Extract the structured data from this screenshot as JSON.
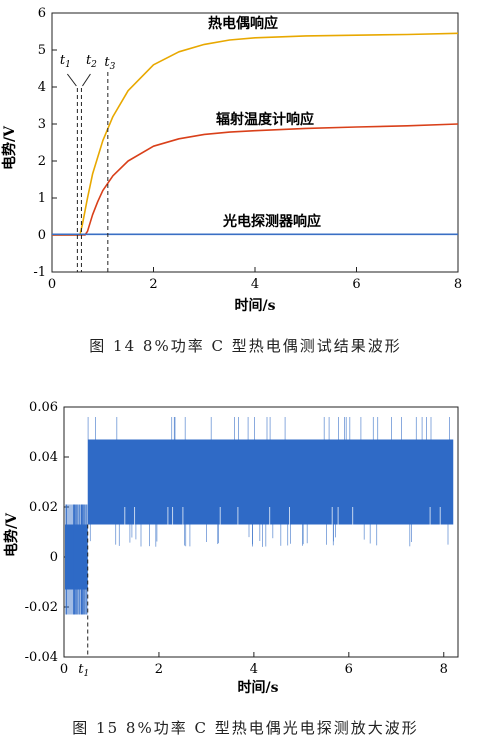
{
  "figures": [
    {
      "caption": "图 14   8%功率 C 型热电偶测试结果波形",
      "chart_data": {
        "type": "line",
        "xlabel": "时间/s",
        "ylabel": "电势/V",
        "xlim": [
          0,
          8
        ],
        "ylim": [
          -1,
          6
        ],
        "xticks": [
          "0",
          "2",
          "4",
          "6",
          "8"
        ],
        "yticks": [
          "-1",
          "0",
          "1",
          "2",
          "3",
          "4",
          "5",
          "6"
        ],
        "series": [
          {
            "name": "热电偶响应",
            "color": "#e8a800",
            "x": [
              0,
              0.55,
              0.6,
              0.7,
              0.8,
              1.0,
              1.2,
              1.5,
              2.0,
              2.5,
              3.0,
              3.5,
              4.0,
              5.0,
              6.0,
              7.0,
              8.0
            ],
            "y": [
              0,
              0,
              0.3,
              1.0,
              1.65,
              2.55,
              3.2,
              3.9,
              4.6,
              4.95,
              5.15,
              5.27,
              5.33,
              5.38,
              5.4,
              5.42,
              5.45
            ]
          },
          {
            "name": "辐射温度计响应",
            "color": "#d9401a",
            "x": [
              0,
              0.65,
              0.7,
              0.8,
              0.9,
              1.0,
              1.2,
              1.5,
              2.0,
              2.5,
              3.0,
              3.5,
              4.0,
              5.0,
              6.0,
              7.0,
              8.0
            ],
            "y": [
              0,
              0,
              0.1,
              0.55,
              0.9,
              1.2,
              1.6,
              2.0,
              2.4,
              2.6,
              2.72,
              2.78,
              2.82,
              2.88,
              2.92,
              2.95,
              3.0
            ]
          },
          {
            "name": "光电探测器响应",
            "color": "#3a6fc4",
            "x": [
              0,
              8.0
            ],
            "y": [
              0.02,
              0.02
            ]
          }
        ],
        "markers": [
          {
            "label": "t",
            "sub": "1",
            "x": 0.5
          },
          {
            "label": "t",
            "sub": "2",
            "x": 0.58
          },
          {
            "label": "t",
            "sub": "3",
            "x": 1.1
          }
        ]
      }
    },
    {
      "caption": "图 15   8%功率 C 型热电偶光电探测放大波形",
      "chart_data": {
        "type": "area",
        "xlabel": "时间/s",
        "ylabel": "电势/V",
        "xlim": [
          0,
          8.3
        ],
        "ylim": [
          -0.04,
          0.06
        ],
        "xticks": [
          "0",
          "2",
          "4",
          "6",
          "8"
        ],
        "yticks": [
          "-0.04",
          "-0.02",
          "0",
          "0.02",
          "0.04",
          "0.06"
        ],
        "series": [
          {
            "color": "#2f6ac6",
            "x": [
              0,
              0.5,
              0.5,
              8.2
            ],
            "upper": [
              0.013,
              0.013,
              0.047,
              0.047
            ],
            "lower": [
              -0.013,
              -0.013,
              0.013,
              0.013
            ],
            "spike_max": [
              0.021,
              0.021,
              0.056,
              0.056
            ],
            "spike_min": [
              -0.023,
              -0.023,
              0.004,
              0.004
            ]
          }
        ],
        "markers": [
          {
            "label": "t",
            "sub": "1",
            "x": 0.5
          }
        ]
      }
    }
  ]
}
